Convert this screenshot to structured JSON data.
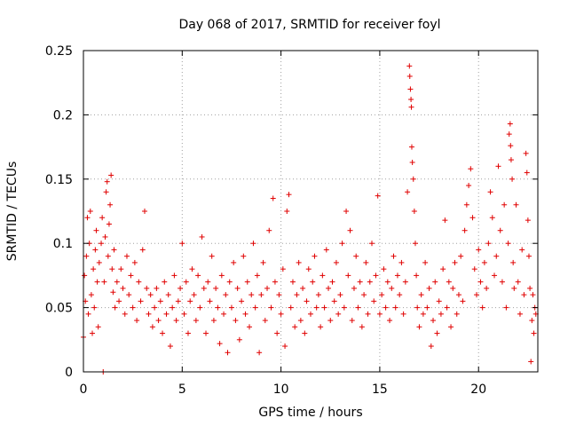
{
  "chart_data": {
    "type": "scatter",
    "title": "Day 068 of 2017, SRMTID for receiver foyl",
    "xlabel": "GPS time / hours",
    "ylabel": "SRMTID / TECUs",
    "xlim": [
      0,
      23
    ],
    "ylim": [
      0,
      0.25
    ],
    "xticks": [
      0,
      5,
      10,
      15,
      20
    ],
    "xtick_labels": [
      "0",
      "5",
      "10",
      "15",
      "20"
    ],
    "yticks": [
      0,
      0.05,
      0.1,
      0.15,
      0.2,
      0.25
    ],
    "ytick_labels": [
      "0",
      "0.05",
      "0.1",
      "0.15",
      "0.2",
      "0.25"
    ],
    "grid": true,
    "marker": "plus",
    "color": "#e00000",
    "series": [
      {
        "name": "SRMTID",
        "points": [
          [
            0.0,
            0.027
          ],
          [
            0.05,
            0.075
          ],
          [
            0.1,
            0.055
          ],
          [
            0.15,
            0.09
          ],
          [
            0.2,
            0.12
          ],
          [
            0.25,
            0.045
          ],
          [
            0.3,
            0.1
          ],
          [
            0.35,
            0.125
          ],
          [
            0.4,
            0.06
          ],
          [
            0.45,
            0.03
          ],
          [
            0.5,
            0.08
          ],
          [
            0.55,
            0.05
          ],
          [
            0.6,
            0.095
          ],
          [
            0.65,
            0.11
          ],
          [
            0.7,
            0.07
          ],
          [
            0.75,
            0.035
          ],
          [
            0.8,
            0.085
          ],
          [
            0.9,
            0.1
          ],
          [
            0.95,
            0.12
          ],
          [
            1.0,
            0.0
          ],
          [
            1.05,
            0.07
          ],
          [
            1.1,
            0.105
          ],
          [
            1.15,
            0.14
          ],
          [
            1.2,
            0.148
          ],
          [
            1.25,
            0.09
          ],
          [
            1.3,
            0.115
          ],
          [
            1.35,
            0.13
          ],
          [
            1.4,
            0.153
          ],
          [
            1.45,
            0.08
          ],
          [
            1.5,
            0.062
          ],
          [
            1.55,
            0.095
          ],
          [
            1.6,
            0.05
          ],
          [
            1.7,
            0.07
          ],
          [
            1.8,
            0.055
          ],
          [
            1.9,
            0.08
          ],
          [
            2.0,
            0.065
          ],
          [
            2.1,
            0.045
          ],
          [
            2.2,
            0.09
          ],
          [
            2.3,
            0.06
          ],
          [
            2.4,
            0.075
          ],
          [
            2.5,
            0.05
          ],
          [
            2.6,
            0.085
          ],
          [
            2.7,
            0.04
          ],
          [
            2.8,
            0.07
          ],
          [
            2.9,
            0.055
          ],
          [
            3.0,
            0.095
          ],
          [
            3.1,
            0.125
          ],
          [
            3.2,
            0.065
          ],
          [
            3.3,
            0.045
          ],
          [
            3.4,
            0.06
          ],
          [
            3.5,
            0.035
          ],
          [
            3.6,
            0.05
          ],
          [
            3.7,
            0.065
          ],
          [
            3.8,
            0.04
          ],
          [
            3.9,
            0.055
          ],
          [
            4.0,
            0.03
          ],
          [
            4.1,
            0.07
          ],
          [
            4.2,
            0.045
          ],
          [
            4.3,
            0.06
          ],
          [
            4.4,
            0.02
          ],
          [
            4.5,
            0.05
          ],
          [
            4.6,
            0.075
          ],
          [
            4.7,
            0.04
          ],
          [
            4.8,
            0.055
          ],
          [
            4.9,
            0.065
          ],
          [
            5.0,
            0.1
          ],
          [
            5.1,
            0.045
          ],
          [
            5.2,
            0.07
          ],
          [
            5.3,
            0.03
          ],
          [
            5.4,
            0.055
          ],
          [
            5.5,
            0.08
          ],
          [
            5.6,
            0.06
          ],
          [
            5.7,
            0.04
          ],
          [
            5.8,
            0.075
          ],
          [
            5.9,
            0.05
          ],
          [
            6.0,
            0.105
          ],
          [
            6.1,
            0.065
          ],
          [
            6.2,
            0.03
          ],
          [
            6.3,
            0.07
          ],
          [
            6.4,
            0.055
          ],
          [
            6.5,
            0.09
          ],
          [
            6.6,
            0.04
          ],
          [
            6.7,
            0.065
          ],
          [
            6.8,
            0.05
          ],
          [
            6.9,
            0.022
          ],
          [
            7.0,
            0.075
          ],
          [
            7.1,
            0.045
          ],
          [
            7.2,
            0.06
          ],
          [
            7.3,
            0.015
          ],
          [
            7.4,
            0.07
          ],
          [
            7.5,
            0.05
          ],
          [
            7.6,
            0.085
          ],
          [
            7.7,
            0.04
          ],
          [
            7.8,
            0.065
          ],
          [
            7.9,
            0.025
          ],
          [
            8.0,
            0.055
          ],
          [
            8.1,
            0.09
          ],
          [
            8.2,
            0.045
          ],
          [
            8.3,
            0.07
          ],
          [
            8.4,
            0.035
          ],
          [
            8.5,
            0.06
          ],
          [
            8.6,
            0.1
          ],
          [
            8.7,
            0.05
          ],
          [
            8.8,
            0.075
          ],
          [
            8.9,
            0.015
          ],
          [
            9.0,
            0.06
          ],
          [
            9.1,
            0.085
          ],
          [
            9.2,
            0.04
          ],
          [
            9.3,
            0.065
          ],
          [
            9.4,
            0.11
          ],
          [
            9.5,
            0.05
          ],
          [
            9.6,
            0.135
          ],
          [
            9.7,
            0.07
          ],
          [
            9.8,
            0.03
          ],
          [
            9.9,
            0.06
          ],
          [
            10.0,
            0.045
          ],
          [
            10.1,
            0.08
          ],
          [
            10.2,
            0.02
          ],
          [
            10.3,
            0.125
          ],
          [
            10.4,
            0.138
          ],
          [
            10.5,
            0.05
          ],
          [
            10.6,
            0.07
          ],
          [
            10.7,
            0.035
          ],
          [
            10.8,
            0.06
          ],
          [
            10.9,
            0.085
          ],
          [
            11.0,
            0.04
          ],
          [
            11.1,
            0.065
          ],
          [
            11.2,
            0.03
          ],
          [
            11.3,
            0.055
          ],
          [
            11.4,
            0.08
          ],
          [
            11.5,
            0.045
          ],
          [
            11.6,
            0.07
          ],
          [
            11.7,
            0.09
          ],
          [
            11.8,
            0.05
          ],
          [
            11.9,
            0.06
          ],
          [
            12.0,
            0.035
          ],
          [
            12.1,
            0.075
          ],
          [
            12.2,
            0.05
          ],
          [
            12.3,
            0.095
          ],
          [
            12.4,
            0.065
          ],
          [
            12.5,
            0.04
          ],
          [
            12.6,
            0.07
          ],
          [
            12.7,
            0.055
          ],
          [
            12.8,
            0.085
          ],
          [
            12.9,
            0.045
          ],
          [
            13.0,
            0.06
          ],
          [
            13.1,
            0.1
          ],
          [
            13.2,
            0.05
          ],
          [
            13.3,
            0.125
          ],
          [
            13.4,
            0.075
          ],
          [
            13.5,
            0.11
          ],
          [
            13.6,
            0.04
          ],
          [
            13.7,
            0.065
          ],
          [
            13.8,
            0.09
          ],
          [
            13.9,
            0.05
          ],
          [
            14.0,
            0.07
          ],
          [
            14.1,
            0.035
          ],
          [
            14.2,
            0.06
          ],
          [
            14.3,
            0.085
          ],
          [
            14.4,
            0.045
          ],
          [
            14.5,
            0.07
          ],
          [
            14.6,
            0.1
          ],
          [
            14.7,
            0.055
          ],
          [
            14.8,
            0.075
          ],
          [
            14.9,
            0.137
          ],
          [
            15.0,
            0.045
          ],
          [
            15.1,
            0.06
          ],
          [
            15.2,
            0.08
          ],
          [
            15.3,
            0.05
          ],
          [
            15.4,
            0.07
          ],
          [
            15.5,
            0.04
          ],
          [
            15.6,
            0.065
          ],
          [
            15.7,
            0.09
          ],
          [
            15.8,
            0.05
          ],
          [
            15.9,
            0.075
          ],
          [
            16.0,
            0.06
          ],
          [
            16.1,
            0.085
          ],
          [
            16.2,
            0.045
          ],
          [
            16.3,
            0.07
          ],
          [
            16.4,
            0.14
          ],
          [
            16.5,
            0.238
          ],
          [
            16.52,
            0.23
          ],
          [
            16.55,
            0.22
          ],
          [
            16.58,
            0.212
          ],
          [
            16.6,
            0.206
          ],
          [
            16.62,
            0.175
          ],
          [
            16.65,
            0.163
          ],
          [
            16.7,
            0.15
          ],
          [
            16.75,
            0.125
          ],
          [
            16.8,
            0.1
          ],
          [
            16.85,
            0.075
          ],
          [
            16.9,
            0.05
          ],
          [
            17.0,
            0.035
          ],
          [
            17.1,
            0.06
          ],
          [
            17.2,
            0.045
          ],
          [
            17.3,
            0.085
          ],
          [
            17.4,
            0.05
          ],
          [
            17.5,
            0.065
          ],
          [
            17.6,
            0.02
          ],
          [
            17.7,
            0.04
          ],
          [
            17.8,
            0.07
          ],
          [
            17.9,
            0.03
          ],
          [
            18.0,
            0.055
          ],
          [
            18.1,
            0.045
          ],
          [
            18.2,
            0.08
          ],
          [
            18.3,
            0.118
          ],
          [
            18.4,
            0.05
          ],
          [
            18.5,
            0.07
          ],
          [
            18.6,
            0.035
          ],
          [
            18.7,
            0.065
          ],
          [
            18.8,
            0.085
          ],
          [
            18.9,
            0.045
          ],
          [
            19.0,
            0.06
          ],
          [
            19.1,
            0.09
          ],
          [
            19.2,
            0.055
          ],
          [
            19.3,
            0.11
          ],
          [
            19.4,
            0.13
          ],
          [
            19.5,
            0.145
          ],
          [
            19.6,
            0.158
          ],
          [
            19.7,
            0.12
          ],
          [
            19.8,
            0.08
          ],
          [
            19.9,
            0.06
          ],
          [
            20.0,
            0.095
          ],
          [
            20.1,
            0.07
          ],
          [
            20.2,
            0.05
          ],
          [
            20.3,
            0.085
          ],
          [
            20.4,
            0.065
          ],
          [
            20.5,
            0.1
          ],
          [
            20.6,
            0.14
          ],
          [
            20.7,
            0.12
          ],
          [
            20.8,
            0.075
          ],
          [
            20.9,
            0.09
          ],
          [
            21.0,
            0.16
          ],
          [
            21.1,
            0.11
          ],
          [
            21.2,
            0.07
          ],
          [
            21.3,
            0.13
          ],
          [
            21.4,
            0.05
          ],
          [
            21.5,
            0.1
          ],
          [
            21.55,
            0.185
          ],
          [
            21.6,
            0.193
          ],
          [
            21.62,
            0.176
          ],
          [
            21.65,
            0.165
          ],
          [
            21.7,
            0.15
          ],
          [
            21.75,
            0.085
          ],
          [
            21.8,
            0.065
          ],
          [
            21.9,
            0.13
          ],
          [
            22.0,
            0.07
          ],
          [
            22.1,
            0.045
          ],
          [
            22.2,
            0.095
          ],
          [
            22.3,
            0.06
          ],
          [
            22.4,
            0.17
          ],
          [
            22.45,
            0.155
          ],
          [
            22.5,
            0.118
          ],
          [
            22.55,
            0.09
          ],
          [
            22.6,
            0.065
          ],
          [
            22.65,
            0.008
          ],
          [
            22.7,
            0.04
          ],
          [
            22.75,
            0.06
          ],
          [
            22.8,
            0.03
          ],
          [
            22.85,
            0.05
          ],
          [
            22.9,
            0.045
          ]
        ]
      }
    ]
  }
}
